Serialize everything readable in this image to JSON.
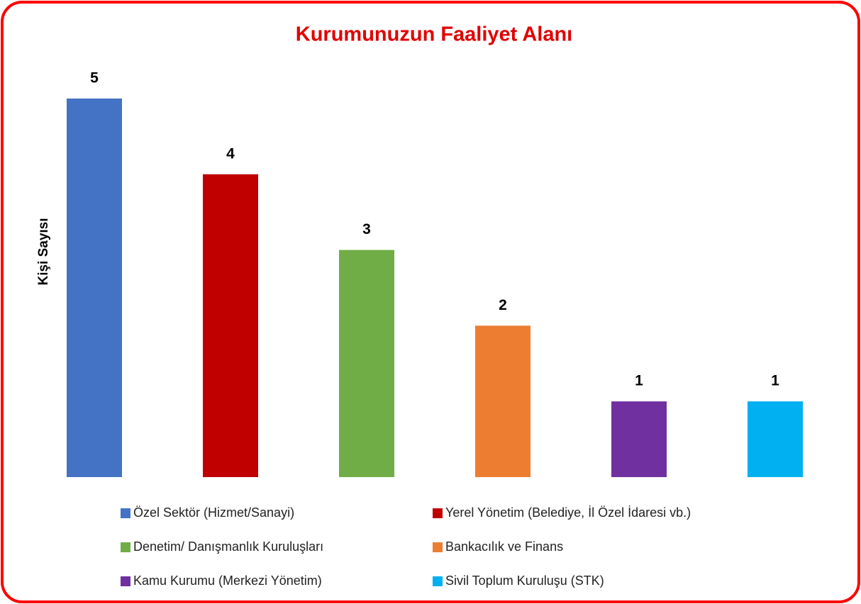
{
  "chart_data": {
    "type": "bar",
    "title": "Kurumunuzun Faaliyet Alanı",
    "y_label": "Kişi Sayısı",
    "series": [
      {
        "name": "Özel Sektör (Hizmet/Sanayi)",
        "color": "#4472c4",
        "values": [
          5
        ]
      },
      {
        "name": "Yerel Yönetim (Belediye, İl Özel İdaresi vb.)",
        "color": "#c00000",
        "values": [
          4
        ]
      },
      {
        "name": "Denetim/ Danışmanlık Kuruluşları",
        "color": "#70ad47",
        "values": [
          3
        ]
      },
      {
        "name": "Bankacılık ve Finans",
        "color": "#ed7d31",
        "values": [
          2
        ]
      },
      {
        "name": "Kamu Kurumu (Merkezi Yönetim)",
        "color": "#7030a0",
        "values": [
          1
        ]
      },
      {
        "name": "Sivil Toplum Kuruluşu (STK)",
        "color": "#00b0f0",
        "values": [
          1
        ]
      }
    ],
    "ylim": [
      0,
      5
    ],
    "grid": false,
    "legend": "bottom"
  }
}
